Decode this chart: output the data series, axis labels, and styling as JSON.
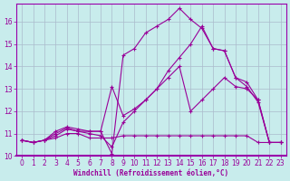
{
  "xlabel": "Windchill (Refroidissement éolien,°C)",
  "background_color": "#c8ecec",
  "grid_color": "#aabbcc",
  "line_color": "#990099",
  "spine_color": "#9900aa",
  "xlim": [
    -0.5,
    23.5
  ],
  "ylim": [
    10,
    16.8
  ],
  "yticks": [
    10,
    11,
    12,
    13,
    14,
    15,
    16
  ],
  "xticks": [
    0,
    1,
    2,
    3,
    4,
    5,
    6,
    7,
    8,
    9,
    10,
    11,
    12,
    13,
    14,
    15,
    16,
    17,
    18,
    19,
    20,
    21,
    22,
    23
  ],
  "tick_fontsize": 5.5,
  "xlabel_fontsize": 5.5,
  "series": [
    [
      10.7,
      10.6,
      10.7,
      10.8,
      11.0,
      11.0,
      10.8,
      10.8,
      10.8,
      10.9,
      10.9,
      10.9,
      10.9,
      10.9,
      10.9,
      10.9,
      10.9,
      10.9,
      10.9,
      10.9,
      10.9,
      10.6,
      10.6,
      10.6
    ],
    [
      10.7,
      10.6,
      10.7,
      10.9,
      11.2,
      11.1,
      11.1,
      11.1,
      13.1,
      11.8,
      12.1,
      12.5,
      13.0,
      13.5,
      14.0,
      12.0,
      12.5,
      13.0,
      13.5,
      13.1,
      13.0,
      12.5,
      10.6,
      10.6
    ],
    [
      10.7,
      10.6,
      10.7,
      11.0,
      11.25,
      11.1,
      11.0,
      10.9,
      10.4,
      11.5,
      12.0,
      12.5,
      13.0,
      13.8,
      14.4,
      15.0,
      15.8,
      14.8,
      14.7,
      13.5,
      13.1,
      12.4,
      10.6,
      10.6
    ],
    [
      10.7,
      10.6,
      10.7,
      11.1,
      11.3,
      11.2,
      11.1,
      11.1,
      10.1,
      14.5,
      14.8,
      15.5,
      15.8,
      16.1,
      16.6,
      16.1,
      15.7,
      14.8,
      14.7,
      13.5,
      13.3,
      12.5,
      10.6,
      10.6
    ]
  ]
}
